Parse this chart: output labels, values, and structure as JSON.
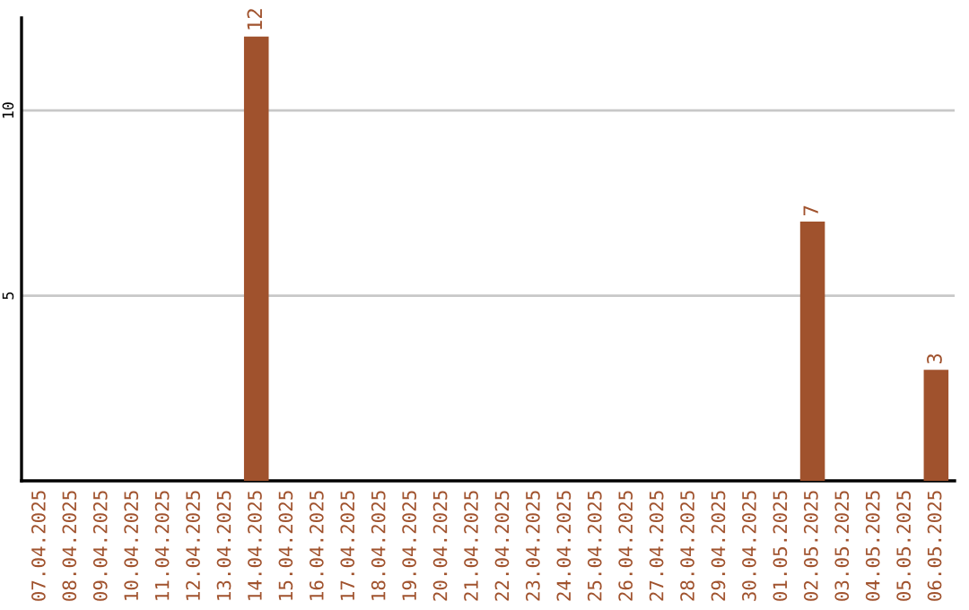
{
  "chart_data": {
    "type": "bar",
    "categories": [
      "07.04.2025",
      "08.04.2025",
      "09.04.2025",
      "10.04.2025",
      "11.04.2025",
      "12.04.2025",
      "13.04.2025",
      "14.04.2025",
      "15.04.2025",
      "16.04.2025",
      "17.04.2025",
      "18.04.2025",
      "19.04.2025",
      "20.04.2025",
      "21.04.2025",
      "22.04.2025",
      "23.04.2025",
      "24.04.2025",
      "25.04.2025",
      "26.04.2025",
      "27.04.2025",
      "28.04.2025",
      "29.04.2025",
      "30.04.2025",
      "01.05.2025",
      "02.05.2025",
      "03.05.2025",
      "04.05.2025",
      "05.05.2025",
      "06.05.2025"
    ],
    "values": [
      0,
      0,
      0,
      0,
      0,
      0,
      0,
      12,
      0,
      0,
      0,
      0,
      0,
      0,
      0,
      0,
      0,
      0,
      0,
      0,
      0,
      0,
      0,
      0,
      0,
      7,
      0,
      0,
      0,
      3
    ],
    "value_labels": [
      null,
      null,
      null,
      null,
      null,
      null,
      null,
      "12",
      null,
      null,
      null,
      null,
      null,
      null,
      null,
      null,
      null,
      null,
      null,
      null,
      null,
      null,
      null,
      null,
      null,
      "7",
      null,
      null,
      null,
      "3"
    ],
    "color": "#a0522d",
    "ylim": [
      0,
      12.5
    ],
    "yticks": [
      5,
      10
    ],
    "grid": "y"
  }
}
